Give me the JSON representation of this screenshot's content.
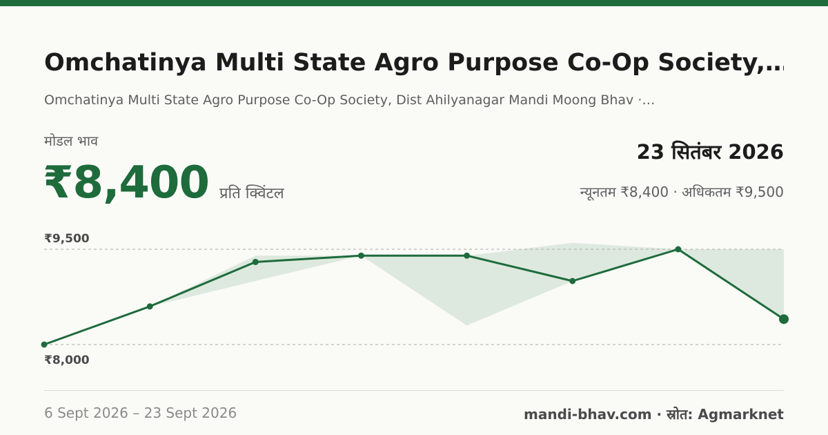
{
  "header": {
    "title": "Omchatinya Multi State Agro Purpose Co-Op Society,…",
    "subtitle": "Omchatinya Multi State Agro Purpose Co-Op Society, Dist Ahilyanagar Mandi Moong Bhav ·…"
  },
  "price": {
    "label": "मोडल भाव",
    "value": "₹8,400",
    "unit": "प्रति क्विंटल"
  },
  "date": "23 सितंबर 2026",
  "range_text": "न्यूनतम ₹8,400 · अधिकतम ₹9,500",
  "footer": {
    "date_range": "6 Sept 2026 – 23 Sept 2026",
    "credit": "mandi-bhav.com · स्रोत: Agmarknet"
  },
  "colors": {
    "accent": "#1e6b3c",
    "band": "#dde9df",
    "grid": "#aaaaaa"
  },
  "chart_data": {
    "type": "line",
    "ylim": [
      8000,
      9500
    ],
    "yticks": [
      "₹9,500",
      "₹8,000"
    ],
    "grid": "dashed horizontal at min and max",
    "series": [
      {
        "values": [
          8000,
          8600,
          9300,
          9400,
          9400,
          9000,
          9500,
          8400
        ]
      }
    ],
    "band": {
      "min": [
        8000,
        8600,
        9000,
        9400,
        8300,
        9000,
        9500,
        8400
      ],
      "max": [
        8000,
        8600,
        9400,
        9400,
        9400,
        9600,
        9500,
        9500
      ]
    }
  }
}
